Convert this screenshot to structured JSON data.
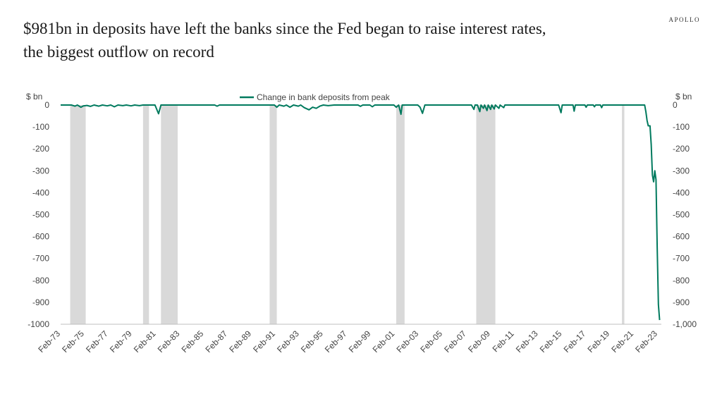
{
  "header": {
    "title_line1": "$981bn in deposits have left the banks since the Fed began to raise interest rates,",
    "title_line2": "the biggest outflow on record",
    "brand": "APOLLO"
  },
  "colors": {
    "line": "#007a5e",
    "recession": "#d9d9d9",
    "text": "#444444"
  },
  "chart_data": {
    "type": "line",
    "title": "$981bn in deposits have left the banks since the Fed began to raise interest rates, the biggest outflow on record",
    "ylabel_left": "$ bn",
    "ylabel_right": "$ bn",
    "ylim": [
      -1000,
      0
    ],
    "xlim": [
      1973.1,
      2023.4
    ],
    "y_ticks_left": [
      {
        "v": 0,
        "label": "0"
      },
      {
        "v": -100,
        "label": "-100"
      },
      {
        "v": -200,
        "label": "-200"
      },
      {
        "v": -300,
        "label": "-300"
      },
      {
        "v": -400,
        "label": "-400"
      },
      {
        "v": -500,
        "label": "-500"
      },
      {
        "v": -600,
        "label": "-600"
      },
      {
        "v": -700,
        "label": "-700"
      },
      {
        "v": -800,
        "label": "-800"
      },
      {
        "v": -900,
        "label": "-900"
      },
      {
        "v": -1000,
        "label": "-1000"
      }
    ],
    "y_ticks_right": [
      {
        "v": 0,
        "label": "0"
      },
      {
        "v": -100,
        "label": "-100"
      },
      {
        "v": -200,
        "label": "-200"
      },
      {
        "v": -300,
        "label": "-300"
      },
      {
        "v": -400,
        "label": "-400"
      },
      {
        "v": -500,
        "label": "-500"
      },
      {
        "v": -600,
        "label": "-600"
      },
      {
        "v": -700,
        "label": "-700"
      },
      {
        "v": -800,
        "label": "-800"
      },
      {
        "v": -900,
        "label": "-900"
      },
      {
        "v": -1000,
        "label": "-1,000"
      }
    ],
    "x_ticks": [
      {
        "v": 1973.1,
        "label": "Feb-73"
      },
      {
        "v": 1975.1,
        "label": "Feb-75"
      },
      {
        "v": 1977.1,
        "label": "Feb-77"
      },
      {
        "v": 1979.1,
        "label": "Feb-79"
      },
      {
        "v": 1981.1,
        "label": "Feb-81"
      },
      {
        "v": 1983.1,
        "label": "Feb-83"
      },
      {
        "v": 1985.1,
        "label": "Feb-85"
      },
      {
        "v": 1987.1,
        "label": "Feb-87"
      },
      {
        "v": 1989.1,
        "label": "Feb-89"
      },
      {
        "v": 1991.1,
        "label": "Feb-91"
      },
      {
        "v": 1993.1,
        "label": "Feb-93"
      },
      {
        "v": 1995.1,
        "label": "Feb-95"
      },
      {
        "v": 1997.1,
        "label": "Feb-97"
      },
      {
        "v": 1999.1,
        "label": "Feb-99"
      },
      {
        "v": 2001.1,
        "label": "Feb-01"
      },
      {
        "v": 2003.1,
        "label": "Feb-03"
      },
      {
        "v": 2005.1,
        "label": "Feb-05"
      },
      {
        "v": 2007.1,
        "label": "Feb-07"
      },
      {
        "v": 2009.1,
        "label": "Feb-09"
      },
      {
        "v": 2011.1,
        "label": "Feb-11"
      },
      {
        "v": 2013.1,
        "label": "Feb-13"
      },
      {
        "v": 2015.1,
        "label": "Feb-15"
      },
      {
        "v": 2017.1,
        "label": "Feb-17"
      },
      {
        "v": 2019.1,
        "label": "Feb-19"
      },
      {
        "v": 2021.1,
        "label": "Feb-21"
      },
      {
        "v": 2023.1,
        "label": "Feb-23"
      }
    ],
    "recessions": [
      {
        "start": 1973.9,
        "end": 1975.2
      },
      {
        "start": 1980.0,
        "end": 1980.5
      },
      {
        "start": 1981.5,
        "end": 1982.9
      },
      {
        "start": 1990.6,
        "end": 1991.2
      },
      {
        "start": 2001.2,
        "end": 2001.9
      },
      {
        "start": 2007.9,
        "end": 2009.5
      },
      {
        "start": 2020.1,
        "end": 2020.3
      }
    ],
    "series": [
      {
        "name": "Change in bank deposits from peak",
        "points": [
          [
            1973.1,
            0
          ],
          [
            1974.0,
            0
          ],
          [
            1974.3,
            -5
          ],
          [
            1974.5,
            0
          ],
          [
            1974.8,
            -10
          ],
          [
            1975.0,
            -4
          ],
          [
            1975.3,
            -2
          ],
          [
            1975.6,
            -6
          ],
          [
            1975.9,
            0
          ],
          [
            1976.3,
            -5
          ],
          [
            1976.6,
            0
          ],
          [
            1977.0,
            -4
          ],
          [
            1977.3,
            0
          ],
          [
            1977.6,
            -8
          ],
          [
            1977.9,
            0
          ],
          [
            1978.3,
            -3
          ],
          [
            1978.6,
            0
          ],
          [
            1979.0,
            -4
          ],
          [
            1979.3,
            0
          ],
          [
            1979.7,
            -3
          ],
          [
            1980.0,
            0
          ],
          [
            1981.0,
            0
          ],
          [
            1981.3,
            -40
          ],
          [
            1981.5,
            0
          ],
          [
            1982.0,
            0
          ],
          [
            1986.0,
            0
          ],
          [
            1986.2,
            -5
          ],
          [
            1986.4,
            0
          ],
          [
            1991.0,
            0
          ],
          [
            1991.2,
            -10
          ],
          [
            1991.4,
            0
          ],
          [
            1991.8,
            -5
          ],
          [
            1992.0,
            0
          ],
          [
            1992.3,
            -10
          ],
          [
            1992.6,
            0
          ],
          [
            1993.0,
            -5
          ],
          [
            1993.2,
            0
          ],
          [
            1993.5,
            -12
          ],
          [
            1993.9,
            -22
          ],
          [
            1994.2,
            -10
          ],
          [
            1994.5,
            -15
          ],
          [
            1994.8,
            -5
          ],
          [
            1995.1,
            0
          ],
          [
            1995.5,
            -3
          ],
          [
            1996.0,
            0
          ],
          [
            1998.0,
            0
          ],
          [
            1998.2,
            -6
          ],
          [
            1998.4,
            0
          ],
          [
            1999.0,
            0
          ],
          [
            1999.2,
            -8
          ],
          [
            1999.4,
            0
          ],
          [
            2001.0,
            0
          ],
          [
            2001.2,
            -10
          ],
          [
            2001.4,
            0
          ],
          [
            2001.6,
            -42
          ],
          [
            2001.7,
            0
          ],
          [
            2003.0,
            0
          ],
          [
            2003.2,
            -10
          ],
          [
            2003.4,
            -38
          ],
          [
            2003.6,
            0
          ],
          [
            2007.5,
            0
          ],
          [
            2007.7,
            -20
          ],
          [
            2007.8,
            0
          ],
          [
            2008.0,
            0
          ],
          [
            2008.2,
            -30
          ],
          [
            2008.3,
            0
          ],
          [
            2008.5,
            -15
          ],
          [
            2008.6,
            0
          ],
          [
            2008.8,
            -25
          ],
          [
            2008.9,
            0
          ],
          [
            2009.1,
            -20
          ],
          [
            2009.2,
            0
          ],
          [
            2009.4,
            -18
          ],
          [
            2009.5,
            0
          ],
          [
            2009.8,
            -15
          ],
          [
            2009.9,
            0
          ],
          [
            2010.2,
            -12
          ],
          [
            2010.3,
            0
          ],
          [
            2014.8,
            0
          ],
          [
            2015.0,
            -35
          ],
          [
            2015.1,
            0
          ],
          [
            2016.0,
            0
          ],
          [
            2016.1,
            -28
          ],
          [
            2016.2,
            0
          ],
          [
            2017.0,
            0
          ],
          [
            2017.1,
            -10
          ],
          [
            2017.2,
            0
          ],
          [
            2017.7,
            0
          ],
          [
            2017.8,
            -8
          ],
          [
            2017.9,
            0
          ],
          [
            2018.3,
            0
          ],
          [
            2018.4,
            -12
          ],
          [
            2018.5,
            0
          ],
          [
            2022.0,
            0
          ],
          [
            2022.1,
            -30
          ],
          [
            2022.2,
            -70
          ],
          [
            2022.3,
            -95
          ],
          [
            2022.45,
            -95
          ],
          [
            2022.55,
            -180
          ],
          [
            2022.65,
            -320
          ],
          [
            2022.75,
            -350
          ],
          [
            2022.85,
            -300
          ],
          [
            2022.95,
            -340
          ],
          [
            2023.05,
            -650
          ],
          [
            2023.15,
            -910
          ],
          [
            2023.25,
            -981
          ]
        ]
      }
    ]
  }
}
